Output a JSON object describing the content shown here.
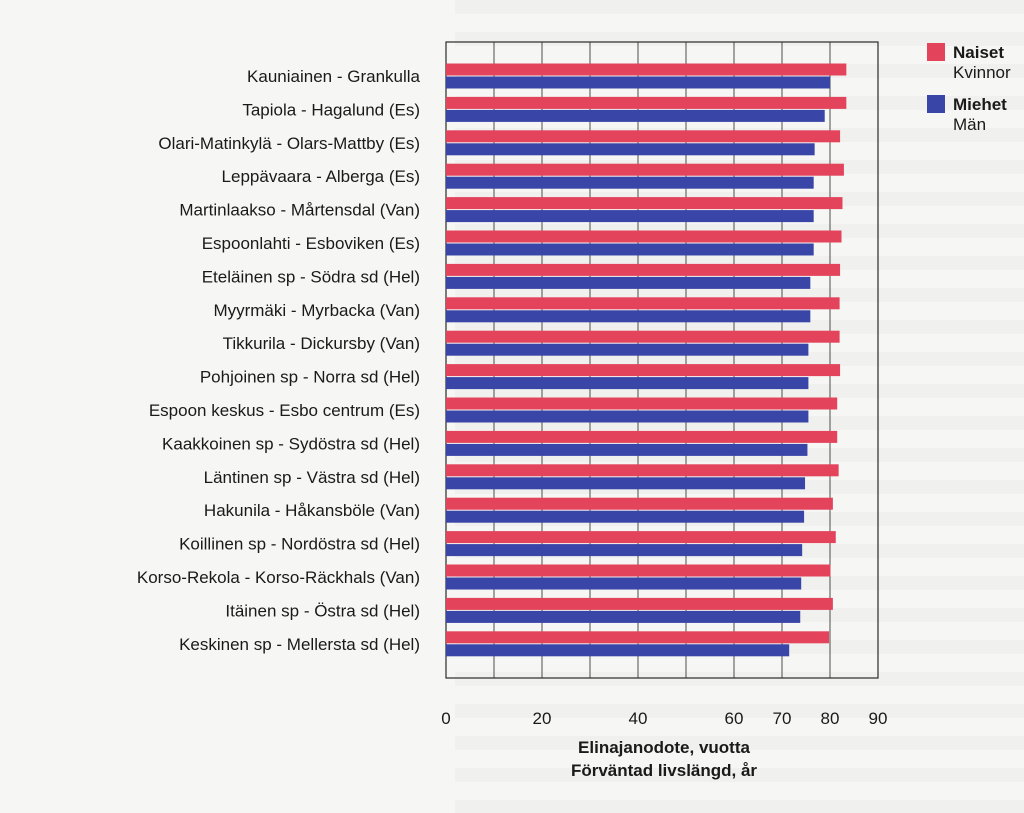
{
  "chart_data": {
    "type": "bar",
    "orientation": "horizontal",
    "categories": [
      "Kauniainen - Grankulla",
      "Tapiola - Hagalund (Es)",
      "Olari-Matinkylä - Olars-Mattby (Es)",
      "Leppävaara - Alberga (Es)",
      "Martinlaakso - Mårtensdal (Van)",
      "Espoonlahti - Esboviken (Es)",
      "Eteläinen sp - Södra sd (Hel)",
      "Myyrmäki - Myrbacka (Van)",
      "Tikkurila - Dickursby (Van)",
      "Pohjoinen sp - Norra sd (Hel)",
      "Espoon keskus - Esbo centrum (Es)",
      "Kaakkoinen sp - Sydöstra sd (Hel)",
      "Läntinen sp - Västra sd (Hel)",
      "Hakunila - Håkansböle (Van)",
      "Koillinen sp - Nordöstra sd (Hel)",
      "Korso-Rekola - Korso-Räckhals (Van)",
      "Itäinen sp - Östra sd (Hel)",
      "Keskinen sp - Mellersta sd (Hel)"
    ],
    "series": [
      {
        "name": "Naiset",
        "name_sv": "Kvinnor",
        "color": "#e3445c",
        "values": [
          83.4,
          83.4,
          82.1,
          82.9,
          82.6,
          82.4,
          82.1,
          82.0,
          82.0,
          82.1,
          81.5,
          81.5,
          81.8,
          80.6,
          81.2,
          80.1,
          80.6,
          79.8
        ]
      },
      {
        "name": "Miehet",
        "name_sv": "Män",
        "color": "#3a45a8",
        "values": [
          80.0,
          78.9,
          76.8,
          76.6,
          76.6,
          76.6,
          75.9,
          75.9,
          75.5,
          75.5,
          75.5,
          75.3,
          74.8,
          74.6,
          74.2,
          74.0,
          73.8,
          71.5
        ]
      }
    ],
    "xticks": [
      0,
      20,
      40,
      60,
      70,
      80,
      90
    ],
    "xlim": [
      0,
      90
    ],
    "xlabel": "Elinajanodote, vuotta",
    "xlabel_sv": "Förväntad livslängd, år",
    "ylabel": "",
    "grid": "vertical",
    "legend": "top-right"
  }
}
